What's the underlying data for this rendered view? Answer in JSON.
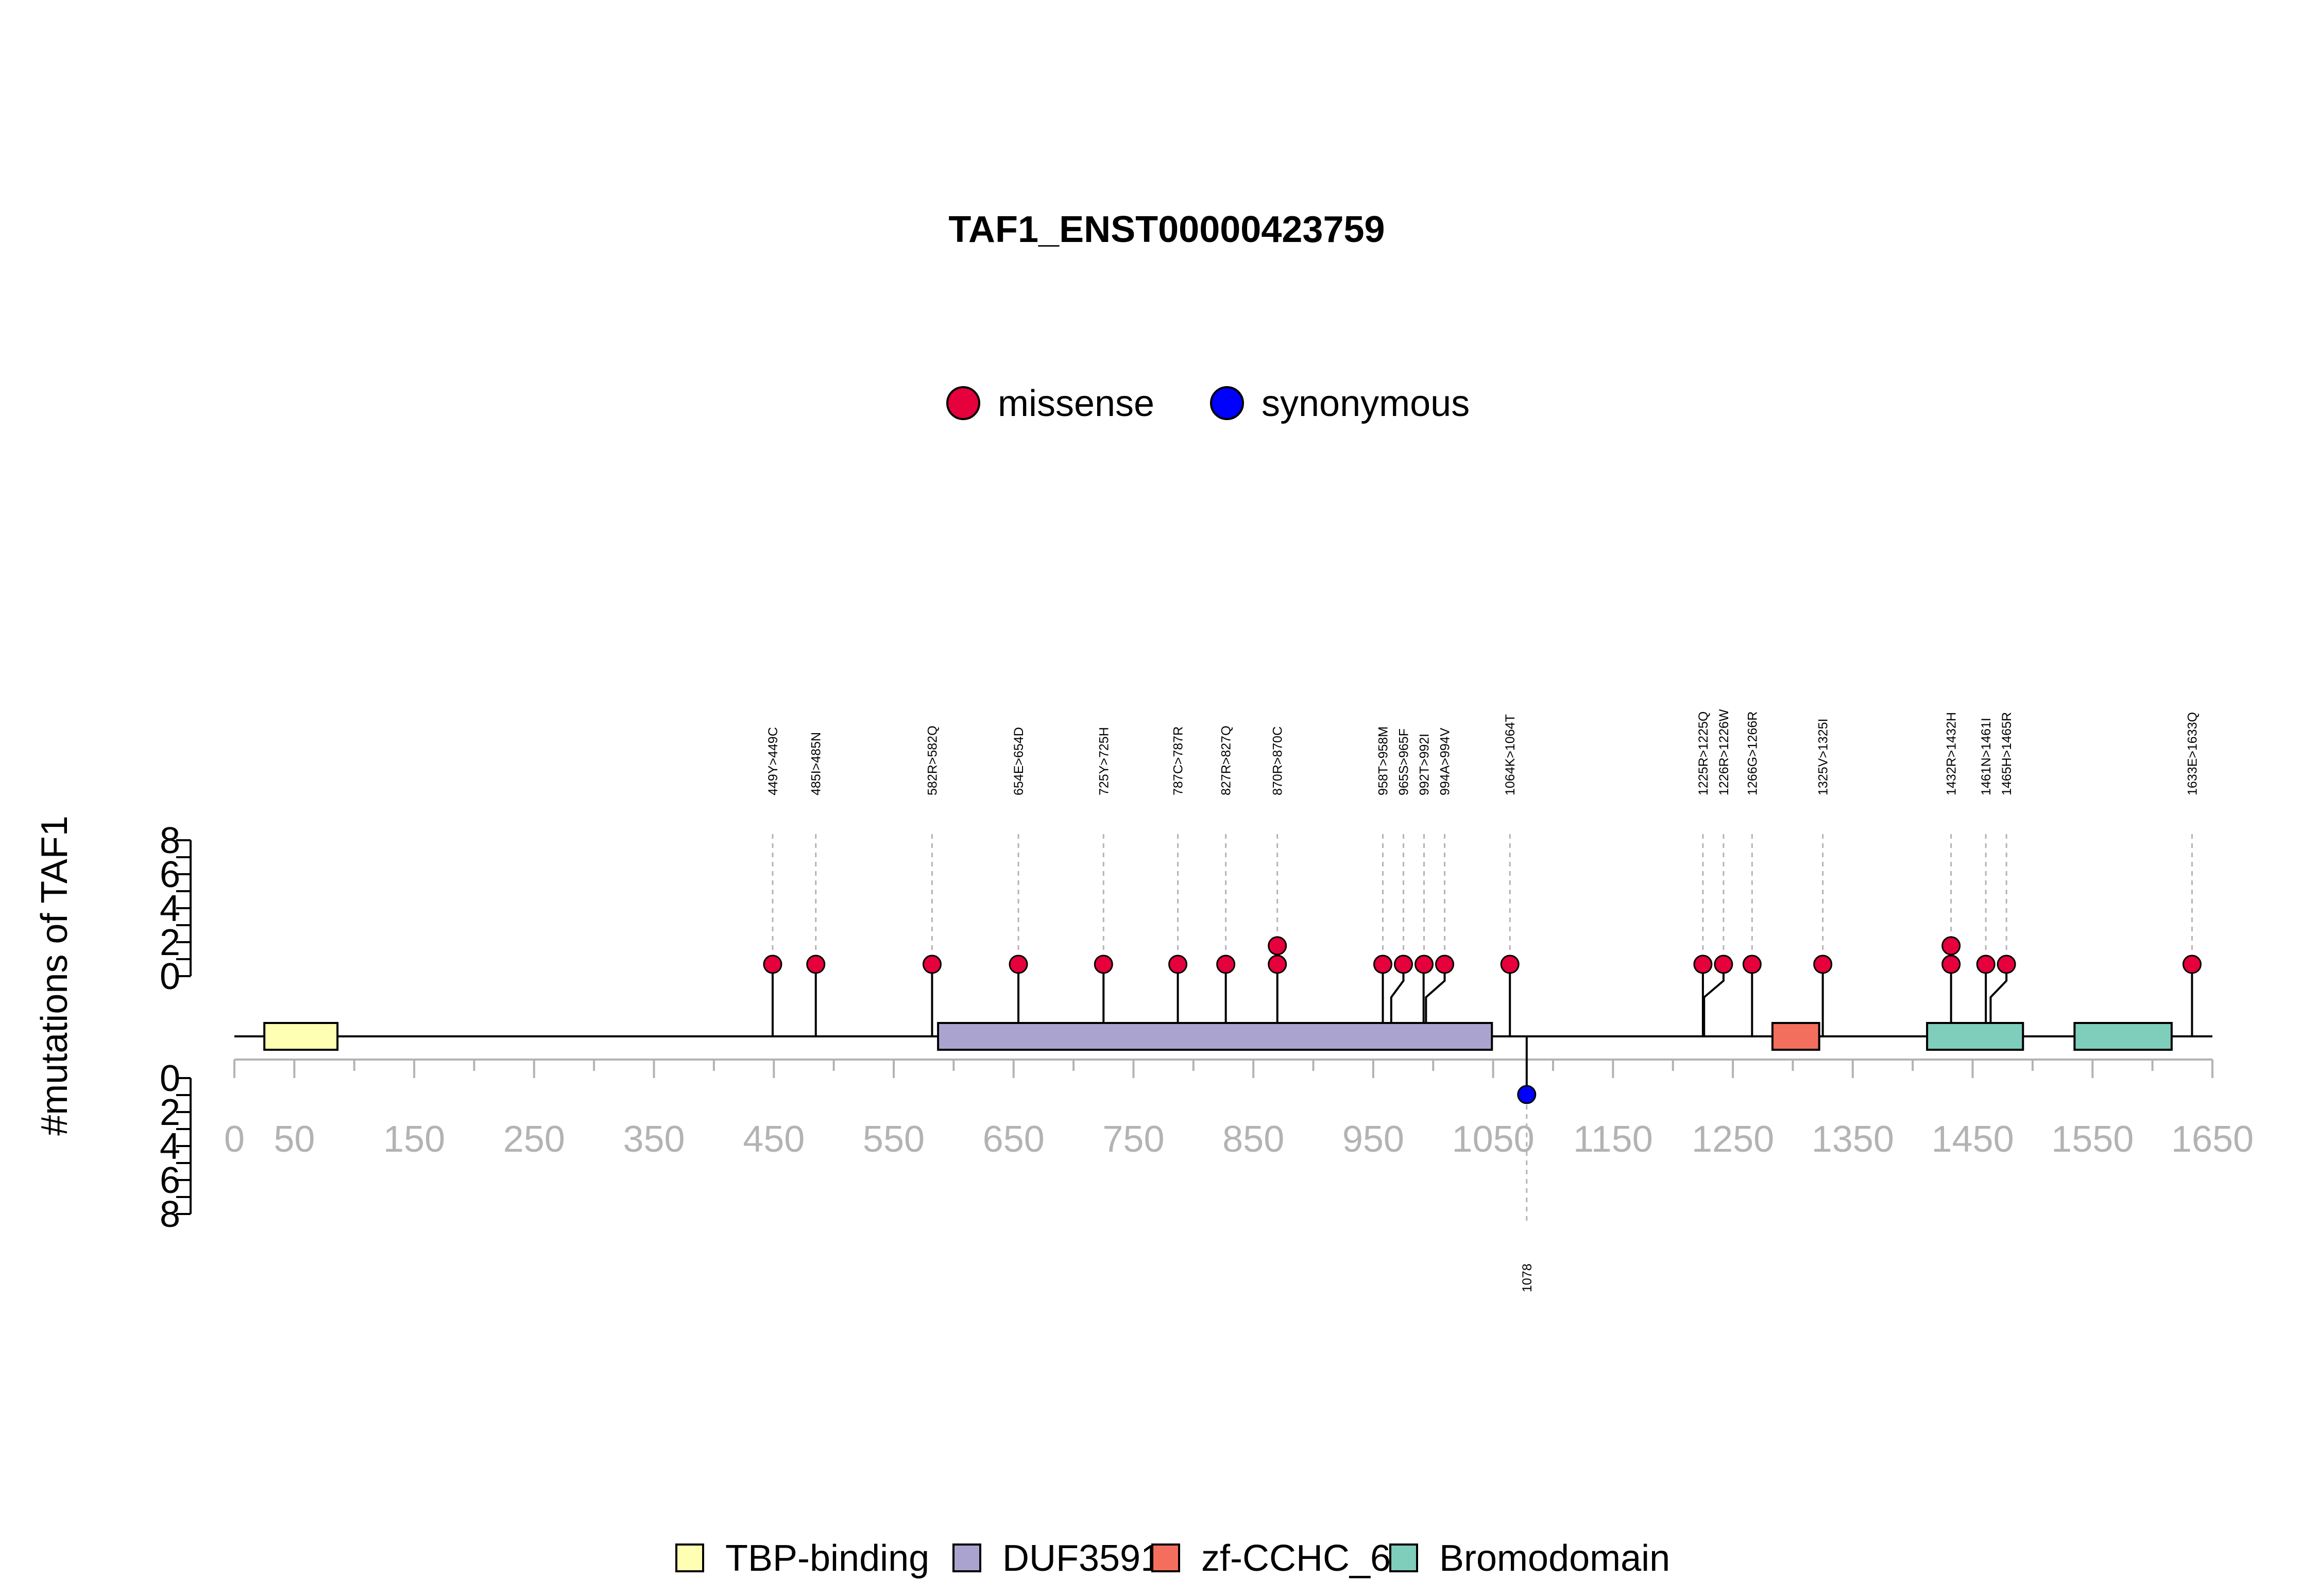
{
  "chart_data": {
    "type": "lollipop",
    "title": "TAF1_ENST00000423759",
    "ylabel": "#mutations of TAF1",
    "xlim": [
      0,
      1650
    ],
    "x_ticks": [
      0,
      50,
      150,
      250,
      350,
      450,
      550,
      650,
      750,
      850,
      950,
      1050,
      1150,
      1250,
      1350,
      1450,
      1550,
      1650
    ],
    "x_minor_ticks": [
      100,
      200,
      300,
      400,
      500,
      600,
      700,
      800,
      900,
      1000,
      1100,
      1200,
      1300,
      1400,
      1500,
      1600
    ],
    "upper_y_ticks": [
      "0",
      "2",
      "4",
      "6",
      "8"
    ],
    "lower_y_ticks": [
      "0",
      "2",
      "4",
      "6",
      "8"
    ],
    "ylim_each": [
      0,
      8
    ],
    "legend_mutations": [
      {
        "name": "missense",
        "color": "#E6003C"
      },
      {
        "name": "synonymous",
        "color": "#0000FF"
      }
    ],
    "domains": [
      {
        "name": "TBP-binding",
        "start": 25,
        "end": 86,
        "color": "#FFFFB3"
      },
      {
        "name": "DUF3591",
        "start": 587,
        "end": 1049,
        "color": "#ABA3CF"
      },
      {
        "name": "zf-CCHC_6",
        "start": 1283,
        "end": 1322,
        "color": "#F46E5E"
      },
      {
        "name": "Bromodomain",
        "start": 1412,
        "end": 1492,
        "color": "#7FCDBB"
      },
      {
        "name": "Bromodomain",
        "start": 1535,
        "end": 1616,
        "color": "#7FCDBB"
      }
    ],
    "upper_mutations": [
      {
        "pos": 449,
        "label": "449Y>449C",
        "count": 1,
        "type": "missense"
      },
      {
        "pos": 485,
        "label": "485I>485N",
        "count": 1,
        "type": "missense"
      },
      {
        "pos": 582,
        "label": "582R>582Q",
        "count": 1,
        "type": "missense"
      },
      {
        "pos": 654,
        "label": "654E>654D",
        "count": 1,
        "type": "missense"
      },
      {
        "pos": 725,
        "label": "725Y>725H",
        "count": 1,
        "type": "missense"
      },
      {
        "pos": 787,
        "label": "787C>787R",
        "count": 1,
        "type": "missense"
      },
      {
        "pos": 827,
        "label": "827R>827Q",
        "count": 1,
        "type": "missense"
      },
      {
        "pos": 870,
        "label": "870R>870C",
        "count": 2,
        "type": "missense"
      },
      {
        "pos": 958,
        "label": "958T>958M",
        "count": 1,
        "type": "missense"
      },
      {
        "pos": 965,
        "label": "965S>965F",
        "count": 1,
        "type": "missense"
      },
      {
        "pos": 992,
        "label": "992T>992I",
        "count": 1,
        "type": "missense"
      },
      {
        "pos": 994,
        "label": "994A>994V",
        "count": 1,
        "type": "missense"
      },
      {
        "pos": 1064,
        "label": "1064K>1064T",
        "count": 1,
        "type": "missense"
      },
      {
        "pos": 1225,
        "label": "1225R>1225Q",
        "count": 1,
        "type": "missense"
      },
      {
        "pos": 1226,
        "label": "1226R>1226W",
        "count": 1,
        "type": "missense"
      },
      {
        "pos": 1266,
        "label": "1266G>1266R",
        "count": 1,
        "type": "missense"
      },
      {
        "pos": 1325,
        "label": "1325V>1325I",
        "count": 1,
        "type": "missense"
      },
      {
        "pos": 1432,
        "label": "1432R>1432H",
        "count": 2,
        "type": "missense"
      },
      {
        "pos": 1461,
        "label": "1461N>1461I",
        "count": 1,
        "type": "missense"
      },
      {
        "pos": 1465,
        "label": "1465H>1465R",
        "count": 1,
        "type": "missense"
      },
      {
        "pos": 1633,
        "label": "1633E>1633Q",
        "count": 1,
        "type": "missense"
      }
    ],
    "lower_mutations": [
      {
        "pos": 1078,
        "label": "1078",
        "count": 1,
        "type": "synonymous"
      }
    ]
  }
}
